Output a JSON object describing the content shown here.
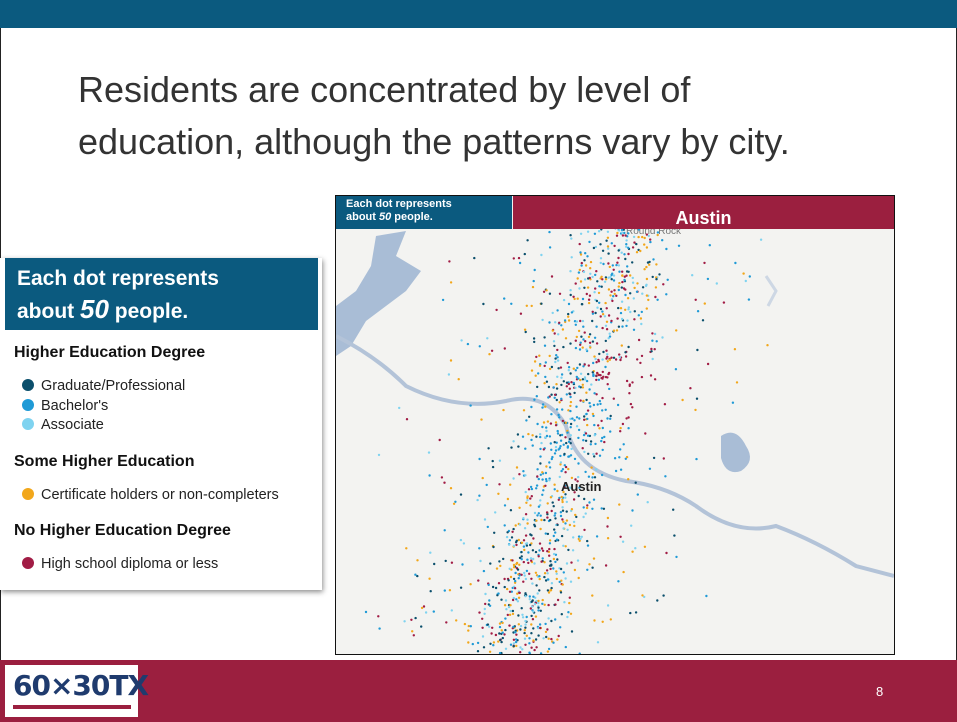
{
  "header": {
    "title_lines": [
      "Residents are concentrated by level of",
      "education, although the patterns vary by city."
    ]
  },
  "map": {
    "note_line1": "Each dot represents",
    "note_line2_before": "about ",
    "note_number": "50",
    "note_line2_after": " people.",
    "city_banner": "Austin",
    "city_label": "Austin",
    "road_label": "Round Rock"
  },
  "legend": {
    "heading_line1": "Each dot represents",
    "heading_line2_before": "about ",
    "heading_number": "50",
    "heading_line2_after": " people.",
    "groups": [
      {
        "title": "Higher Education Degree",
        "items": [
          {
            "label": "Graduate/Professional",
            "color": "#0b4f6c"
          },
          {
            "label": "Bachelor's",
            "color": "#1f9ad6"
          },
          {
            "label": "Associate",
            "color": "#7fd3f0"
          }
        ]
      },
      {
        "title": "Some Higher Education",
        "items": [
          {
            "label": "Certificate holders or non-completers",
            "color": "#f2a71b"
          }
        ]
      },
      {
        "title": "No Higher Education Degree",
        "items": [
          {
            "label": "High school diploma or less",
            "color": "#a11c45"
          }
        ]
      }
    ]
  },
  "footer": {
    "logo": "60×30TX",
    "page_number": "8"
  }
}
